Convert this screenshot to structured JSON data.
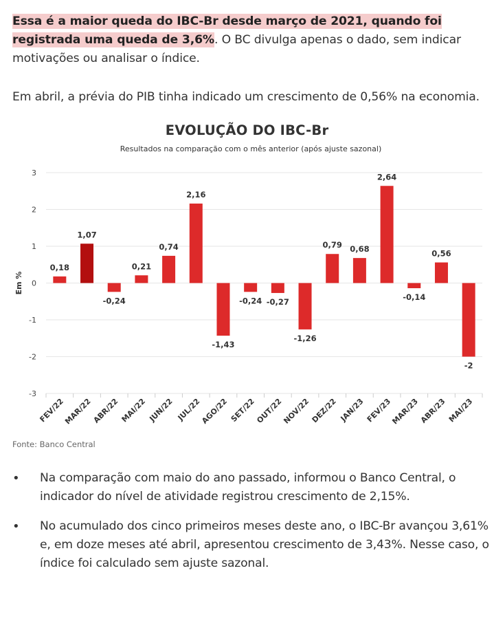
{
  "article": {
    "p1_highlight": "Essa é a maior queda do IBC-Br desde março de 2021, quando foi registrada uma queda de 3,6%",
    "p1_rest": ". O BC divulga apenas o dado, sem indicar motivações ou analisar o índice.",
    "p2": "Em abril, a prévia do PIB tinha indicado um crescimento de 0,56% na economia."
  },
  "colors": {
    "bar_default": "#dd2a2a",
    "bar_highlight": "#b30f0f",
    "grid": "#e6e6e6",
    "highlight_bg": "#f5cccc"
  },
  "chart_data": {
    "type": "bar",
    "title": "EVOLUÇÃO DO IBC-Br",
    "subtitle": "Resultados na comparação com o mês anterior (após ajuste sazonal)",
    "ylabel": "Em %",
    "xlabel": "",
    "ylim": [
      -3,
      3
    ],
    "yticks": [
      3,
      2,
      1,
      0,
      -1,
      -2,
      -3
    ],
    "grid": true,
    "categories": [
      "FEV/22",
      "MAR/22",
      "ABR/22",
      "MAI/22",
      "JUN/22",
      "JUL/22",
      "AGO/22",
      "SET/22",
      "OUT/22",
      "NOV/22",
      "DEZ/22",
      "JAN/23",
      "FEV/23",
      "MAR/23",
      "ABR/23",
      "MAI/23"
    ],
    "values": [
      0.18,
      1.07,
      -0.24,
      0.21,
      0.74,
      2.16,
      -1.43,
      -0.24,
      -0.27,
      -1.26,
      0.79,
      0.68,
      2.64,
      -0.14,
      0.56,
      -2
    ],
    "labels": [
      "0,18",
      "1,07",
      "-0,24",
      "0,21",
      "0,74",
      "2,16",
      "-1,43",
      "-0,24",
      "-0,27",
      "-1,26",
      "0,79",
      "0,68",
      "2,64",
      "-0,14",
      "0,56",
      "-2"
    ],
    "highlighted_index": 1
  },
  "source": "Fonte: Banco Central",
  "bullets": [
    {
      "marker": "•",
      "text": "Na comparação com maio do ano passado, informou o Banco Central, o indicador do nível de atividade registrou crescimento de 2,15%."
    },
    {
      "marker": "•",
      "text": "No acumulado dos cinco primeiros meses deste ano, o IBC-Br avançou 3,61% e, em doze meses até abril, apresentou crescimento de 3,43%. Nesse caso, o índice foi calculado sem ajuste sazonal."
    }
  ]
}
